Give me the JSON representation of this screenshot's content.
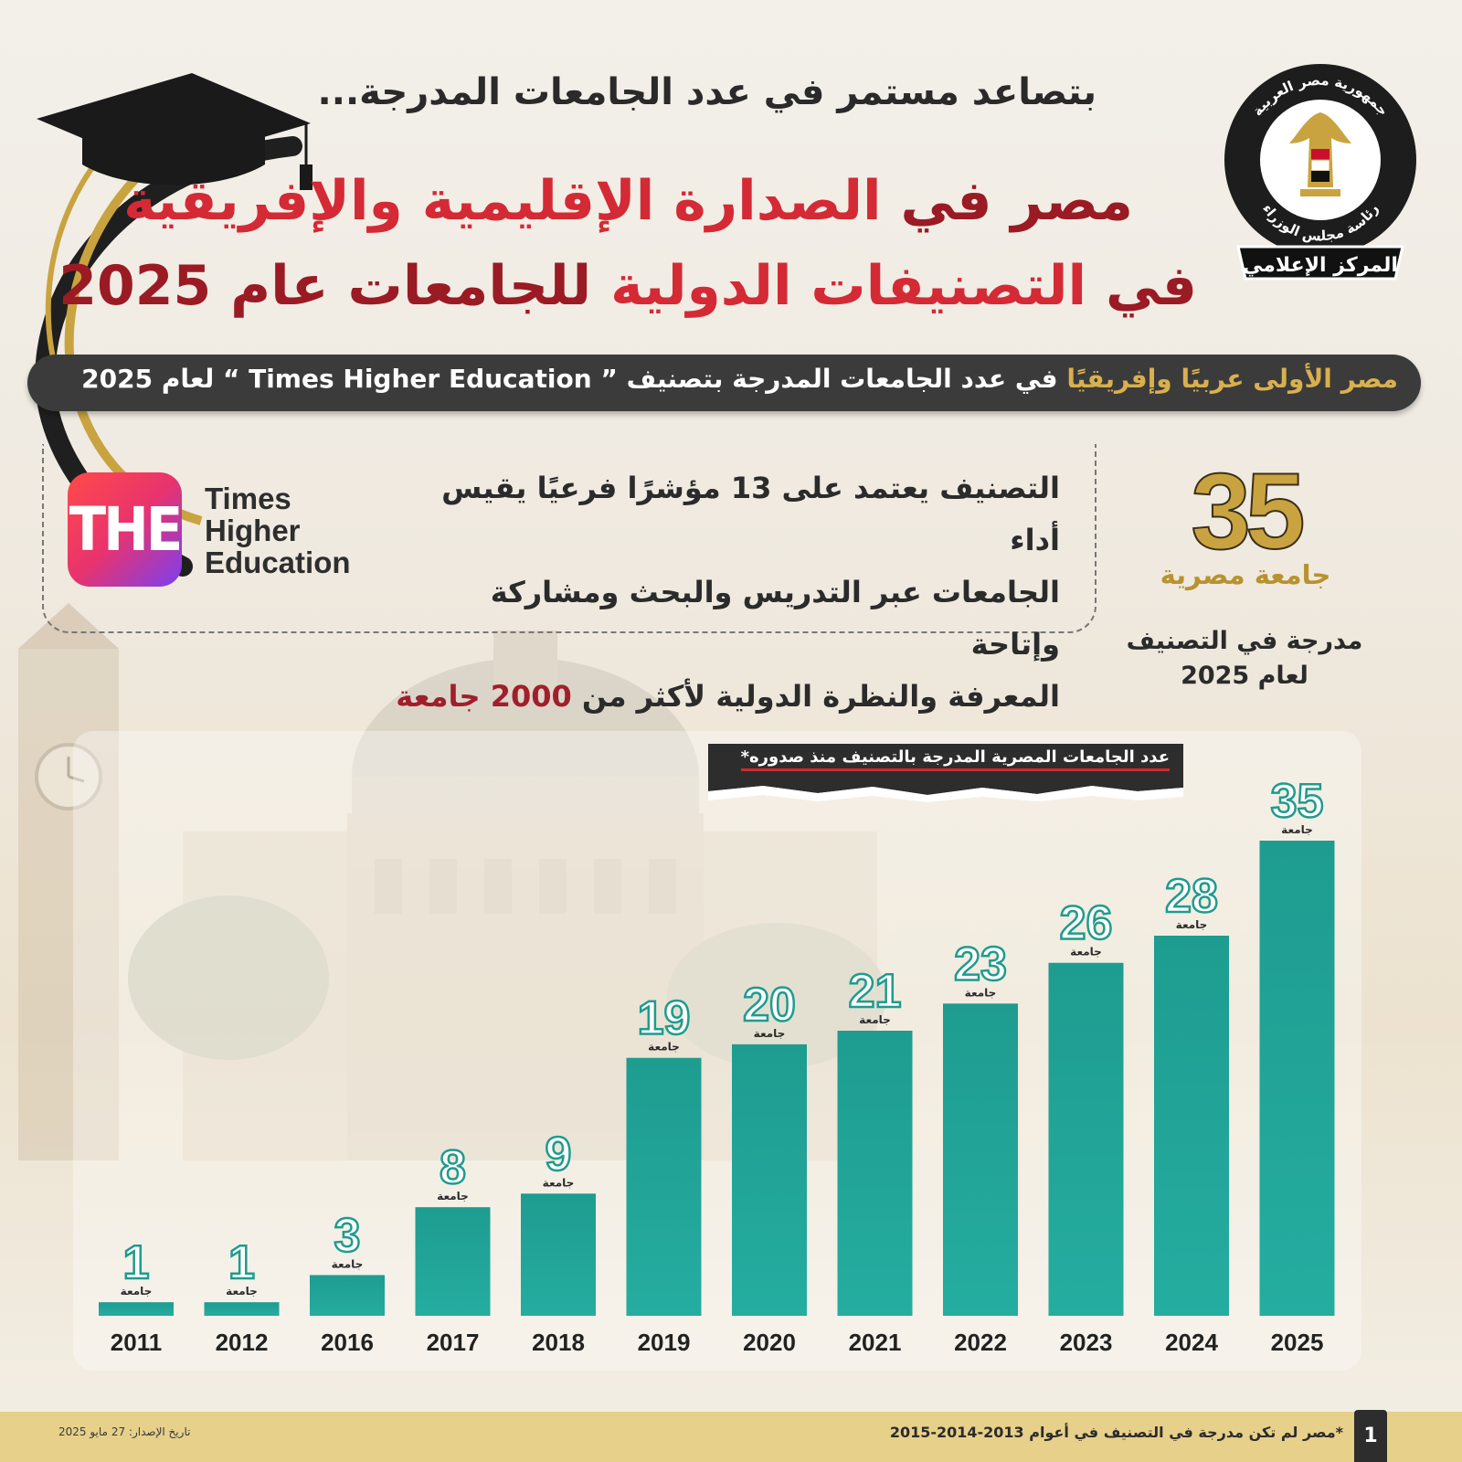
{
  "header": {
    "subtitle": "بتصاعد مستمر في عدد الجامعات المدرجة...",
    "title_line1_part1": "مصر في ",
    "title_line1_part2": "الصدارة الإقليمية والإفريقية",
    "title_line2_part1": "في ",
    "title_line2_part2": "التصنيفات الدولية",
    "title_line2_part3": " للجامعات عام 2025"
  },
  "emblem": {
    "arc_text": "جمهورية مصر العربية",
    "lower_text": "رئاسة مجلس الوزراء",
    "ribbon_text": "المركز الإعلامي"
  },
  "banner": {
    "part1": "مصر الأولى عربيًا وإفريقيًا",
    "part2": " في عدد الجامعات المدرجة بتصنيف ” Times Higher Education “ لعام 2025"
  },
  "logo": {
    "mark": "THE",
    "line1": "Times",
    "line2": "Higher",
    "line3": "Education"
  },
  "info": {
    "line1": "التصنيف يعتمد على 13 مؤشرًا فرعيًا يقيس أداء",
    "line2": "الجامعات عبر التدريس والبحث ومشاركة وإتاحة",
    "line3": "المعرفة والنظرة الدولية لأكثر من ",
    "line3_highlight": "2000 جامعة"
  },
  "highlight": {
    "number": "35",
    "label": "جامعة مصرية",
    "sub1": "مدرجة في التصنيف",
    "sub2": "لعام 2025"
  },
  "chart_data": {
    "type": "bar",
    "title": "عدد الجامعات المصرية المدرجة بالتصنيف منذ صدوره*",
    "categories": [
      "2011",
      "2012",
      "2016",
      "2017",
      "2018",
      "2019",
      "2020",
      "2021",
      "2022",
      "2023",
      "2024",
      "2025"
    ],
    "values": [
      1,
      1,
      3,
      8,
      9,
      19,
      20,
      21,
      23,
      26,
      28,
      35
    ],
    "value_unit_label": "جامعة",
    "colors": {
      "bar_top": "#1e9c90",
      "bar_bottom": "#25ada0",
      "label": "#1f9b8f"
    }
  },
  "footer": {
    "note": "*مصر لم تكن مدرجة في التصنيف في أعوام 2013-2014-2015",
    "date": "تاريخ الإصدار: 27 مايو 2025",
    "page": "1"
  },
  "colors": {
    "title_dark_red": "#9a1b24",
    "title_red": "#d42a35",
    "gold": "#c9a33f",
    "banner_bg": "#3b3b3b",
    "footer_bg": "#e7d08a"
  }
}
